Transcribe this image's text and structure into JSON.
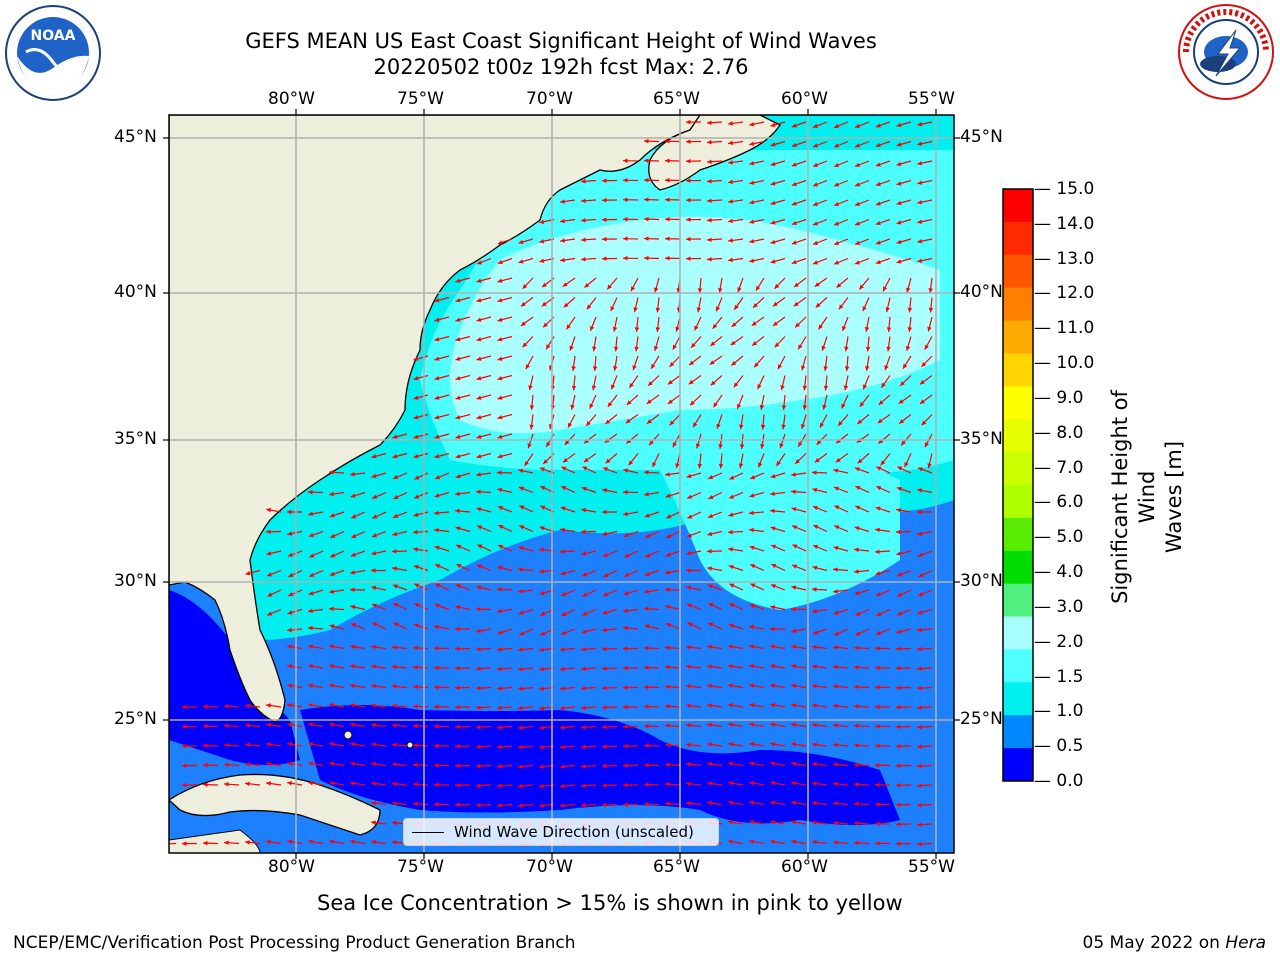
{
  "title_line1": "GEFS MEAN US East Coast Significant Height of Wind Waves",
  "title_line2": "20220502 t00z 192h fcst   Max: 2.76",
  "logos": {
    "left": "NOAA",
    "left_ring": "NATIONAL OCEANIC AND ATMOSPHERIC ADMINISTRATION · U.S. DEPARTMENT OF COMMERCE",
    "right_ring": "NATIONAL WEATHER SERVICE"
  },
  "lon_labels": [
    "80°W",
    "75°W",
    "70°W",
    "65°W",
    "60°W",
    "55°W"
  ],
  "lat_labels": [
    "45°N",
    "40°N",
    "35°N",
    "30°N",
    "25°N"
  ],
  "legend_label": "Wind Wave Direction (unscaled)",
  "colorbar": {
    "label_line1": "Significant Height of Wind",
    "label_line2": "Waves [m]",
    "ticks": [
      "15.0",
      "14.0",
      "13.0",
      "12.0",
      "11.0",
      "10.0",
      "9.0",
      "8.0",
      "7.0",
      "6.0",
      "5.0",
      "4.0",
      "3.0",
      "2.0",
      "1.5",
      "1.0",
      "0.5",
      "0.0"
    ],
    "colors_top_to_bottom": [
      "#ff0000",
      "#ff2a00",
      "#ff5500",
      "#ff7f00",
      "#ffaa00",
      "#ffd400",
      "#ffff00",
      "#e5ff00",
      "#cbff00",
      "#b0ff00",
      "#5aec00",
      "#00dd00",
      "#50f080",
      "#a8ffff",
      "#50ffff",
      "#00f0f0",
      "#0088ff",
      "#0000ff"
    ]
  },
  "note": "Sea Ice Concentration > 15% is shown in pink to yellow",
  "footer_left": "NCEP/EMC/Verification Post Processing Product Generation Branch",
  "footer_date": "05 May 2022 on ",
  "footer_host": "Hera",
  "map_colors": {
    "land": "#eeeedc",
    "arrow": "#ff0000",
    "grid": "#b0b0b0"
  }
}
